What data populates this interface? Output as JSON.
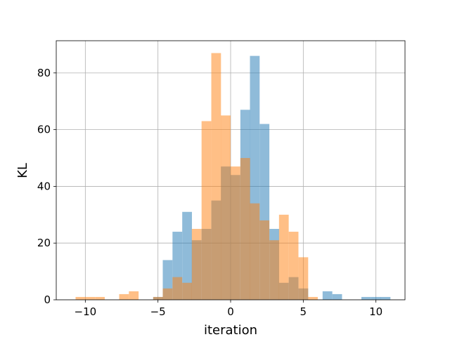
{
  "chart_data": {
    "type": "histogram",
    "title": "",
    "xlabel": "iteration",
    "ylabel": "KL",
    "xlim": [
      -12,
      12
    ],
    "ylim": [
      0,
      91.35
    ],
    "xticks": [
      -10,
      -5,
      0,
      5,
      10
    ],
    "yticks": [
      0,
      20,
      40,
      60,
      80
    ],
    "grid": true,
    "legend": "none",
    "bin_width": 0.667,
    "series": [
      {
        "color": "#1f77b4",
        "opacity": 0.5,
        "bins": [
          {
            "x": -5.33,
            "value": 1
          },
          {
            "x": -4.67,
            "value": 14
          },
          {
            "x": -4.0,
            "value": 24
          },
          {
            "x": -3.33,
            "value": 31
          },
          {
            "x": -2.67,
            "value": 21
          },
          {
            "x": -2.0,
            "value": 25
          },
          {
            "x": -1.33,
            "value": 35
          },
          {
            "x": -0.67,
            "value": 47
          },
          {
            "x": 0.0,
            "value": 44
          },
          {
            "x": 0.67,
            "value": 67
          },
          {
            "x": 1.33,
            "value": 86
          },
          {
            "x": 2.0,
            "value": 62
          },
          {
            "x": 2.67,
            "value": 25
          },
          {
            "x": 3.33,
            "value": 6
          },
          {
            "x": 4.0,
            "value": 8
          },
          {
            "x": 4.67,
            "value": 4
          },
          {
            "x": 6.33,
            "value": 3
          },
          {
            "x": 7.0,
            "value": 2
          },
          {
            "x": 9.0,
            "value": 1
          },
          {
            "x": 9.67,
            "value": 1
          },
          {
            "x": 10.33,
            "value": 1
          }
        ]
      },
      {
        "color": "#ff7f0e",
        "opacity": 0.5,
        "bins": [
          {
            "x": -10.67,
            "value": 1
          },
          {
            "x": -10.0,
            "value": 1
          },
          {
            "x": -9.33,
            "value": 1
          },
          {
            "x": -7.67,
            "value": 2
          },
          {
            "x": -7.0,
            "value": 3
          },
          {
            "x": -5.33,
            "value": 1
          },
          {
            "x": -4.67,
            "value": 4
          },
          {
            "x": -4.0,
            "value": 8
          },
          {
            "x": -3.33,
            "value": 6
          },
          {
            "x": -2.67,
            "value": 25
          },
          {
            "x": -2.0,
            "value": 63
          },
          {
            "x": -1.33,
            "value": 87
          },
          {
            "x": -0.67,
            "value": 65
          },
          {
            "x": 0.0,
            "value": 47
          },
          {
            "x": 0.67,
            "value": 50
          },
          {
            "x": 1.33,
            "value": 34
          },
          {
            "x": 2.0,
            "value": 28
          },
          {
            "x": 2.67,
            "value": 21
          },
          {
            "x": 3.33,
            "value": 30
          },
          {
            "x": 4.0,
            "value": 24
          },
          {
            "x": 4.67,
            "value": 15
          },
          {
            "x": 5.33,
            "value": 1
          }
        ]
      }
    ]
  }
}
